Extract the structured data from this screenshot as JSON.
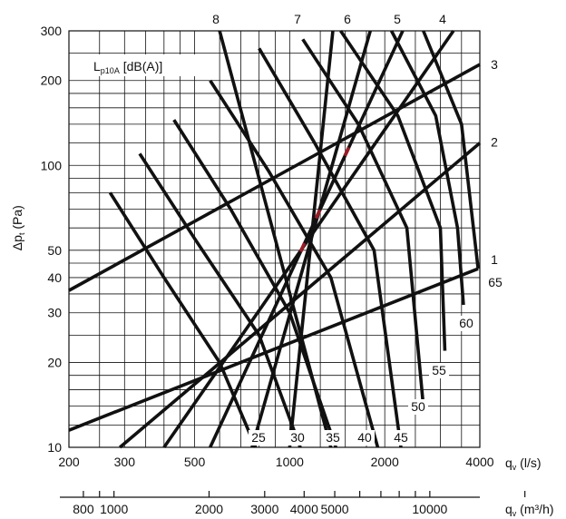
{
  "chart_data": {
    "type": "line",
    "x_log": true,
    "y_log": true,
    "xlim": [
      200,
      4000
    ],
    "ylim": [
      10,
      300
    ],
    "grid": true,
    "xlabel": "q",
    "xlabel_sub": "v",
    "xlabel_unit": " (l/s)",
    "x2label": "q",
    "x2label_sub": "v",
    "x2label_unit": " (m³/h)",
    "ylabel_prefix": "Δp",
    "ylabel_sub": "t",
    "ylabel_unit": " (Pa)",
    "legend_label": "L",
    "legend_label_sub": "p10A",
    "legend_label_unit": " [dB(A)]",
    "x_ticks": [
      {
        "value": 200,
        "label": "200"
      },
      {
        "value": 300,
        "label": "300"
      },
      {
        "value": 500,
        "label": "500"
      },
      {
        "value": 1000,
        "label": "1000"
      },
      {
        "value": 2000,
        "label": "2000"
      },
      {
        "value": 4000,
        "label": "4000"
      }
    ],
    "y_ticks": [
      {
        "value": 10,
        "label": "10"
      },
      {
        "value": 20,
        "label": "20"
      },
      {
        "value": 30,
        "label": "30"
      },
      {
        "value": 40,
        "label": "40"
      },
      {
        "value": 50,
        "label": "50"
      },
      {
        "value": 100,
        "label": "100"
      },
      {
        "value": 200,
        "label": "200"
      },
      {
        "value": 300,
        "label": "300"
      }
    ],
    "x2_ticks": [
      {
        "value": 800,
        "label": "800"
      },
      {
        "value": 1000,
        "label": "1000"
      },
      {
        "value": 2000,
        "label": "2000"
      },
      {
        "value": 3000,
        "label": "3000"
      },
      {
        "value": 4000,
        "label": "4000"
      },
      {
        "value": 5000,
        "label": "5000"
      },
      {
        "value": 10000,
        "label": "10000"
      }
    ],
    "x2_minor": [
      900,
      6000,
      7000,
      8000,
      9000,
      20000
    ],
    "x2_range_m3h": [
      720,
      14400
    ],
    "x_grid_values": [
      250,
      300,
      350,
      400,
      450,
      500,
      600,
      700,
      800,
      900,
      1000,
      1250,
      1500,
      1750,
      2000,
      2500,
      3000,
      3500,
      4000
    ],
    "y_grid_values": [
      12,
      14,
      16,
      18,
      20,
      25,
      30,
      35,
      40,
      45,
      50,
      60,
      70,
      80,
      90,
      100,
      120,
      140,
      160,
      180,
      200,
      250,
      300
    ],
    "system_curves": [
      {
        "label": "1",
        "points": [
          [
            200,
            11.5
          ],
          [
            3950,
            43
          ]
        ]
      },
      {
        "label": "2",
        "points": [
          [
            290,
            10
          ],
          [
            4000,
            120
          ]
        ]
      },
      {
        "label": "3",
        "points": [
          [
            200,
            36
          ],
          [
            4000,
            228
          ]
        ]
      },
      {
        "label": "4",
        "points": [
          [
            400,
            10
          ],
          [
            3300,
            300
          ]
        ]
      },
      {
        "label": "5",
        "points": [
          [
            560,
            10
          ],
          [
            2280,
            300
          ]
        ]
      },
      {
        "label": "6",
        "points": [
          [
            760,
            10
          ],
          [
            1800,
            300
          ]
        ]
      },
      {
        "label": "7",
        "points": [
          [
            1000,
            10
          ],
          [
            1370,
            300
          ]
        ]
      },
      {
        "label": "8",
        "points": [
          [
            1350,
            10
          ],
          [
            600,
            300
          ]
        ]
      }
    ],
    "sound_curves": [
      {
        "label": "25",
        "points": [
          [
            270,
            80
          ],
          [
            400,
            40
          ],
          [
            600,
            20
          ],
          [
            780,
            10
          ]
        ]
      },
      {
        "label": "30",
        "points": [
          [
            335,
            110
          ],
          [
            500,
            55
          ],
          [
            800,
            25
          ],
          [
            1080,
            10
          ]
        ]
      },
      {
        "label": "35",
        "points": [
          [
            430,
            145
          ],
          [
            650,
            70
          ],
          [
            1000,
            30
          ],
          [
            1400,
            10
          ]
        ]
      },
      {
        "label": "40",
        "points": [
          [
            560,
            200
          ],
          [
            860,
            95
          ],
          [
            1350,
            40
          ],
          [
            1900,
            10
          ]
        ]
      },
      {
        "label": "45",
        "points": [
          [
            800,
            260
          ],
          [
            1200,
            120
          ],
          [
            1850,
            50
          ],
          [
            2250,
            10
          ]
        ]
      },
      {
        "label": "50",
        "points": [
          [
            1100,
            280
          ],
          [
            1650,
            140
          ],
          [
            2350,
            60
          ],
          [
            2650,
            14
          ]
        ]
      },
      {
        "label": "55",
        "points": [
          [
            1450,
            300
          ],
          [
            2200,
            150
          ],
          [
            3000,
            60
          ],
          [
            3100,
            22
          ]
        ]
      },
      {
        "label": "60",
        "points": [
          [
            2100,
            300
          ],
          [
            2900,
            150
          ],
          [
            3400,
            60
          ],
          [
            3550,
            32
          ]
        ]
      },
      {
        "label": "65",
        "points": [
          [
            2650,
            300
          ],
          [
            3500,
            140
          ],
          [
            3950,
            43
          ]
        ]
      }
    ],
    "accent_color": "#9b1b25",
    "line_color": "#111111"
  }
}
